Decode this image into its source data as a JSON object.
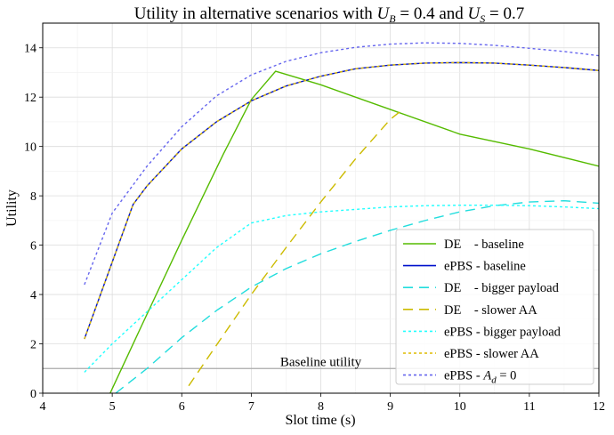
{
  "chart_data": {
    "type": "line",
    "title": "Utility in alternative scenarios with U_B = 0.4 and U_S = 0.7",
    "title_parts": {
      "prefix": "Utility in alternative scenarios with ",
      "ub_var": "U",
      "ub_sub": "B",
      "ub_eq": " = 0.4 and ",
      "us_var": "U",
      "us_sub": "S",
      "us_eq": " = 0.7"
    },
    "xlabel": "Slot time (s)",
    "ylabel": "Utility",
    "xlim": [
      4,
      12
    ],
    "ylim": [
      0,
      15
    ],
    "xticks": [
      4,
      5,
      6,
      7,
      8,
      9,
      10,
      11,
      12
    ],
    "yticks": [
      0,
      2,
      4,
      6,
      8,
      10,
      12,
      14
    ],
    "grid": true,
    "legend_position": "lower-right",
    "baseline": {
      "value": 1.0,
      "label": "Baseline utility",
      "color": "#aaaaaa"
    },
    "series": [
      {
        "name": "DE    - baseline",
        "color": "#55bb00",
        "style": "solid",
        "x": [
          4.97,
          5.4,
          6.0,
          6.6,
          7.0,
          7.35,
          8.0,
          9.0,
          10.0,
          11.0,
          12.0
        ],
        "y": [
          0,
          2.6,
          6.2,
          9.7,
          11.9,
          13.05,
          12.5,
          11.5,
          10.5,
          9.9,
          9.2
        ]
      },
      {
        "name": "ePBS - baseline",
        "color": "#0011cc",
        "style": "solid",
        "x": [
          4.6,
          5.3,
          5.5,
          6.0,
          6.5,
          7.0,
          7.5,
          8.0,
          8.5,
          9.0,
          9.5,
          10.0,
          10.5,
          11.0,
          11.5,
          12.0
        ],
        "y": [
          2.2,
          7.65,
          8.4,
          9.9,
          11.0,
          11.85,
          12.45,
          12.85,
          13.15,
          13.3,
          13.38,
          13.4,
          13.38,
          13.3,
          13.2,
          13.08
        ]
      },
      {
        "name": "DE    - bigger payload",
        "color": "#22dddd",
        "style": "longdash",
        "x": [
          5.05,
          5.5,
          6.0,
          6.5,
          7.0,
          7.5,
          8.0,
          8.5,
          9.0,
          9.5,
          10.0,
          10.5,
          11.0,
          11.5,
          12.0
        ],
        "y": [
          0,
          1.0,
          2.25,
          3.35,
          4.3,
          5.05,
          5.65,
          6.15,
          6.6,
          7.0,
          7.35,
          7.6,
          7.75,
          7.8,
          7.7
        ]
      },
      {
        "name": "DE    - slower AA",
        "color": "#ccbb00",
        "style": "longdash",
        "x": [
          6.1,
          6.5,
          7.0,
          7.5,
          8.0,
          8.5,
          9.0,
          9.2
        ],
        "y": [
          0.3,
          1.95,
          4.0,
          5.9,
          7.75,
          9.5,
          11.1,
          11.55
        ]
      },
      {
        "name": "ePBS - bigger payload",
        "color": "#22ffff",
        "style": "shortdash",
        "x": [
          4.6,
          5.0,
          5.5,
          6.0,
          6.5,
          7.0,
          7.5,
          8.0,
          8.5,
          9.0,
          9.5,
          10.0,
          10.5,
          11.0,
          11.5,
          12.0
        ],
        "y": [
          0.85,
          2.0,
          3.3,
          4.6,
          5.9,
          6.9,
          7.2,
          7.35,
          7.45,
          7.55,
          7.6,
          7.62,
          7.62,
          7.6,
          7.55,
          7.48
        ]
      },
      {
        "name": "ePBS - slower AA",
        "color": "#ddbb00",
        "style": "shortdash",
        "x": [
          4.6,
          5.3,
          5.5,
          6.0,
          6.5,
          7.0,
          7.5,
          8.0,
          8.5,
          9.0,
          9.5,
          10.0,
          10.5,
          11.0,
          11.5,
          12.0
        ],
        "y": [
          2.2,
          7.65,
          8.4,
          9.9,
          11.0,
          11.85,
          12.45,
          12.85,
          13.15,
          13.3,
          13.38,
          13.4,
          13.38,
          13.3,
          13.2,
          13.08
        ]
      },
      {
        "name": "ePBS - A_d = 0",
        "color": "#6666ee",
        "style": "shortdash",
        "x": [
          4.6,
          5.0,
          5.5,
          6.0,
          6.5,
          7.0,
          7.5,
          8.0,
          8.5,
          9.0,
          9.5,
          10.0,
          10.5,
          11.0,
          11.5,
          12.0
        ],
        "y": [
          4.4,
          7.3,
          9.2,
          10.8,
          12.05,
          12.9,
          13.45,
          13.8,
          14.02,
          14.15,
          14.2,
          14.18,
          14.1,
          13.98,
          13.85,
          13.68
        ]
      }
    ],
    "legend_entries": [
      {
        "label": "DE    - baseline",
        "series_index": 0
      },
      {
        "label": "ePBS - baseline",
        "series_index": 1
      },
      {
        "label": "DE    - bigger payload",
        "series_index": 2
      },
      {
        "label": "DE    - slower AA",
        "series_index": 3
      },
      {
        "label": "ePBS - bigger payload",
        "series_index": 4
      },
      {
        "label": "ePBS - slower AA",
        "series_index": 5
      },
      {
        "label_prefix": "ePBS - ",
        "label_var": "A",
        "label_sub": "d",
        "label_suffix": " = 0",
        "series_index": 6
      }
    ]
  }
}
